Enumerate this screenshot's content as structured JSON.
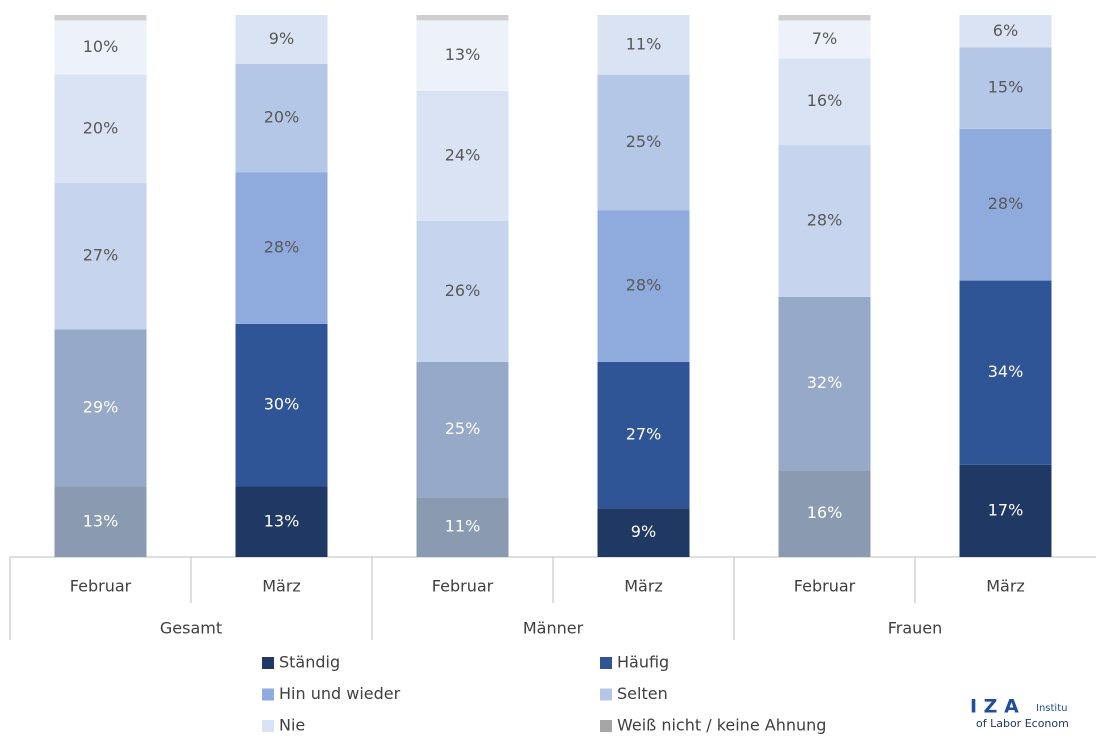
{
  "chart_data": {
    "type": "stacked_bar",
    "groups": [
      "Gesamt",
      "Männer",
      "Frauen"
    ],
    "categories": [
      "Februar",
      "März",
      "Februar",
      "März",
      "Februar",
      "März"
    ],
    "ylim": [
      0,
      100
    ],
    "series": [
      {
        "name": "Ständig",
        "color": "#1f3864",
        "colors": [
          "#8a9ab0",
          "#1f3864",
          "#8a9ab0",
          "#1f3864",
          "#8a9ab0",
          "#1f3864"
        ],
        "values": [
          13,
          13,
          11,
          9,
          16,
          17
        ],
        "value_labels": [
          "13%",
          "13%",
          "11%",
          "9%",
          "16%",
          "17%"
        ]
      },
      {
        "name": "Häufig",
        "color": "#2f5597",
        "colors": [
          "#97a9c8",
          "#2f5597",
          "#97a9c8",
          "#2f5597",
          "#97a9c8",
          "#2f5597"
        ],
        "values": [
          29,
          30,
          25,
          27,
          32,
          34
        ],
        "value_labels": [
          "29%",
          "30%",
          "25%",
          "27%",
          "32%",
          "34%"
        ]
      },
      {
        "name": "Hin und wieder",
        "color": "#8faadc",
        "colors": [
          "#c7d4ee",
          "#8faadc",
          "#c7d4ee",
          "#8faadc",
          "#c7d4ee",
          "#8faadc"
        ],
        "values": [
          27,
          28,
          26,
          28,
          28,
          28
        ],
        "value_labels": [
          "27%",
          "28%",
          "26%",
          "28%",
          "28%",
          "28%"
        ]
      },
      {
        "name": "Selten",
        "color": "#b4c7e7",
        "colors": [
          "#dae3f3",
          "#b4c7e7",
          "#dae3f3",
          "#b4c7e7",
          "#dae3f3",
          "#b4c7e7"
        ],
        "values": [
          20,
          20,
          24,
          25,
          16,
          15
        ],
        "value_labels": [
          "20%",
          "20%",
          "24%",
          "25%",
          "16%",
          "15%"
        ]
      },
      {
        "name": "Nie",
        "color": "#dae3f3",
        "colors": [
          "#edf1f9",
          "#dae3f3",
          "#edf1f9",
          "#dae3f3",
          "#edf1f9",
          "#dae3f3"
        ],
        "values": [
          10,
          9,
          13,
          11,
          7,
          6
        ],
        "value_labels": [
          "10%",
          "9%",
          "13%",
          "11%",
          "7%",
          "6%"
        ]
      },
      {
        "name": "Weiß nicht / keine Ahnung",
        "color": "#a6a6a6",
        "colors": [
          "#cfcfcf",
          "#a6a6a6",
          "#cfcfcf",
          "#a6a6a6",
          "#cfcfcf",
          "#a6a6a6"
        ],
        "values": [
          1,
          0,
          1,
          0,
          1,
          0
        ],
        "value_labels": [
          null,
          null,
          null,
          null,
          null,
          null
        ]
      }
    ]
  },
  "logo": {
    "mark": "I Z A",
    "line1": "Institu",
    "line2": "of Labor Econom"
  }
}
